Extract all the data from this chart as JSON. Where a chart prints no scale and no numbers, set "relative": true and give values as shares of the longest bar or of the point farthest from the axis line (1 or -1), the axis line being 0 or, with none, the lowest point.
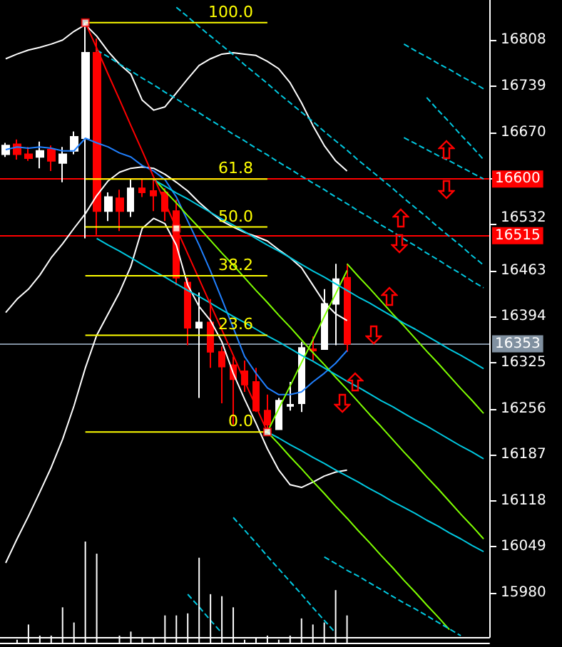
{
  "chart_data": [
    {
      "type": "candlestick",
      "categories": [
        null,
        null,
        null,
        null,
        null,
        null,
        null,
        null,
        null,
        null,
        null,
        null,
        null,
        null,
        null,
        null,
        null,
        null,
        null,
        null,
        null,
        null,
        null,
        null,
        null,
        null,
        null,
        null,
        null,
        null,
        null,
        null,
        null,
        null,
        null,
        null,
        null,
        null,
        null,
        null,
        null,
        null,
        null
      ],
      "ohlc": [
        [
          16637,
          16654,
          16633,
          16650
        ],
        [
          16652,
          16659,
          16629,
          16637
        ],
        [
          16637,
          16648,
          16627,
          16631
        ],
        [
          16633,
          16656,
          16616,
          16642
        ],
        [
          16644,
          16650,
          16612,
          16627
        ],
        [
          16624,
          16648,
          16595,
          16637
        ],
        [
          16642,
          16671,
          16637,
          16663
        ],
        [
          16661,
          16834,
          16511,
          16789
        ],
        [
          16789,
          16810,
          16516,
          16552
        ],
        [
          16552,
          16580,
          16537,
          16573
        ],
        [
          16571,
          16584,
          16522,
          16552
        ],
        [
          16552,
          16599,
          16543,
          16586
        ],
        [
          16586,
          16599,
          16573,
          16580
        ],
        [
          16582,
          16601,
          16552,
          16575
        ],
        [
          16580,
          16586,
          16537,
          16552
        ],
        [
          16552,
          16569,
          16441,
          16452
        ],
        [
          16445,
          16452,
          16351,
          16377
        ],
        [
          16377,
          16430,
          16272,
          16385
        ],
        [
          16385,
          16420,
          16317,
          16341
        ],
        [
          16341,
          16349,
          16264,
          16319
        ],
        [
          16321,
          16334,
          16232,
          16300
        ],
        [
          16312,
          16328,
          16281,
          16292
        ],
        [
          16296,
          16317,
          16251,
          16253
        ],
        [
          16253,
          16277,
          16221,
          16232
        ],
        [
          16225,
          16272,
          16225,
          16268
        ],
        [
          16260,
          16296,
          16253,
          16262
        ],
        [
          16264,
          16356,
          16251,
          16347
        ],
        [
          16345,
          16364,
          16328,
          16343
        ],
        [
          16345,
          16435,
          16345,
          16413
        ],
        [
          16413,
          16473,
          16351,
          16450
        ],
        [
          16452,
          16473,
          16341,
          16353
        ],
        null,
        null,
        null,
        null,
        null,
        null,
        null,
        null,
        null,
        null,
        null,
        null
      ],
      "ylim": [
        15914,
        16868
      ],
      "yticks": [
        15980,
        16049,
        16118,
        16187,
        16256,
        16325,
        16394,
        16463,
        16532,
        {
          "value": 16600,
          "label": null
        },
        16670,
        16739,
        16808
      ],
      "tick_labels": "y",
      "grid": false,
      "legend": false,
      "series": [
        {
          "type": "line",
          "color": "#ffffff",
          "values": [
            16780,
            16787,
            16793,
            16797,
            16802,
            16808,
            16821,
            16831,
            16814,
            16791,
            16772,
            16757,
            16718,
            16703,
            16708,
            16729,
            16750,
            16770,
            16780,
            16787,
            16789,
            16787,
            16785,
            16776,
            16765,
            16744,
            16714,
            16680,
            16650,
            16627,
            16612,
            null,
            null,
            null,
            null,
            null,
            null,
            null,
            null,
            null,
            null,
            null,
            null
          ]
        },
        {
          "type": "line",
          "color": "#ffffff",
          "values": [
            16400,
            16420,
            16435,
            16456,
            16482,
            16503,
            16526,
            16548,
            16575,
            16597,
            16610,
            16616,
            16618,
            16616,
            16607,
            16595,
            16582,
            16565,
            16550,
            16537,
            16528,
            16520,
            16514,
            16507,
            16494,
            16482,
            16467,
            16441,
            16415,
            16398,
            16388,
            null,
            null,
            null,
            null,
            null,
            null,
            null,
            null,
            null,
            null,
            null,
            null
          ]
        },
        {
          "type": "line",
          "color": "#ffffff",
          "values": [
            16025,
            16061,
            16095,
            16131,
            16168,
            16210,
            16260,
            16317,
            16366,
            16398,
            16430,
            16469,
            16526,
            16541,
            16533,
            16501,
            16441,
            16409,
            16388,
            16356,
            16309,
            16270,
            16234,
            16196,
            16164,
            16142,
            16138,
            16146,
            16155,
            16161,
            16164,
            null,
            null,
            null,
            null,
            null,
            null,
            null,
            null,
            null,
            null,
            null,
            null
          ]
        },
        {
          "type": "line",
          "color": "#2080ff",
          "values": [
            16644,
            16648,
            16646,
            16648,
            16646,
            16642,
            16642,
            16661,
            16654,
            16648,
            16639,
            16633,
            16620,
            16612,
            16599,
            16573,
            16537,
            16501,
            16462,
            16420,
            16377,
            16334,
            16309,
            16287,
            16277,
            16277,
            16281,
            16296,
            16309,
            16324,
            16343,
            null,
            null,
            null,
            null,
            null,
            null,
            null,
            null,
            null,
            null,
            null,
            null
          ]
        },
        {
          "type": "line",
          "color": "#7fff00",
          "values": [
            null,
            null,
            null,
            null,
            null,
            null,
            null,
            null,
            null,
            null,
            null,
            null,
            null,
            null,
            null,
            null,
            null,
            null,
            null,
            null,
            null,
            null,
            null,
            16221,
            16256,
            16290,
            16325,
            16359,
            16394,
            16428,
            16463,
            null,
            null,
            null,
            null,
            null,
            null,
            null,
            null,
            null,
            null,
            null,
            null
          ]
        },
        {
          "type": "line",
          "color": "#7fff00",
          "values": [
            null,
            null,
            null,
            null,
            null,
            null,
            null,
            null,
            null,
            null,
            null,
            null,
            null,
            null,
            null,
            null,
            null,
            null,
            null,
            null,
            null,
            null,
            null,
            null,
            null,
            null,
            null,
            null,
            null,
            null,
            16473,
            16454,
            16436,
            16417,
            16398,
            16380,
            16361,
            16342,
            16324,
            16305,
            16286,
            16268,
            16249
          ]
        },
        {
          "type": "line",
          "color": "#7fff00",
          "values": [
            null,
            null,
            null,
            null,
            null,
            null,
            null,
            null,
            null,
            null,
            null,
            null,
            null,
            16601,
            16582,
            16564,
            16545,
            16527,
            16508,
            16489,
            16471,
            16452,
            16433,
            16415,
            16396,
            16378,
            16359,
            16340,
            16322,
            16303,
            16285,
            16266,
            16247,
            16229,
            16210,
            16191,
            16173,
            16154,
            16136,
            16117,
            16098,
            16080,
            16061
          ]
        },
        {
          "type": "line",
          "color": "#7fff00",
          "values": [
            null,
            null,
            null,
            null,
            null,
            null,
            null,
            null,
            null,
            null,
            null,
            null,
            null,
            null,
            null,
            null,
            null,
            null,
            null,
            null,
            null,
            null,
            null,
            16221,
            16203,
            16184,
            16166,
            16147,
            16129,
            16110,
            16092,
            16073,
            16055,
            16036,
            16018,
            15999,
            15981,
            15962,
            15944,
            15925,
            null,
            null,
            null
          ]
        },
        {
          "type": "line",
          "color": "#00c8e0",
          "values": [
            null,
            null,
            null,
            null,
            null,
            null,
            null,
            null,
            null,
            null,
            null,
            null,
            null,
            16599,
            16589,
            16579,
            16570,
            16560,
            16550,
            16540,
            16531,
            16521,
            16511,
            16501,
            16492,
            16482,
            16472,
            16462,
            16453,
            16443,
            16433,
            16423,
            16414,
            16404,
            16394,
            16384,
            16375,
            16365,
            16355,
            16345,
            16336,
            16326,
            16316
          ]
        },
        {
          "type": "line",
          "color": "#00c8e0",
          "values": [
            null,
            null,
            null,
            null,
            null,
            null,
            null,
            null,
            16511,
            16501,
            16492,
            16482,
            16472,
            16462,
            16453,
            16443,
            16433,
            16424,
            16414,
            16404,
            16394,
            16385,
            16375,
            16365,
            16356,
            16346,
            16336,
            16327,
            16317,
            16307,
            16297,
            16288,
            16278,
            16268,
            16259,
            16249,
            16239,
            16230,
            16220,
            16210,
            16200,
            16191,
            16181
          ]
        },
        {
          "type": "line",
          "color": "#00c8e0",
          "values": [
            null,
            null,
            null,
            null,
            null,
            null,
            null,
            null,
            null,
            null,
            null,
            null,
            null,
            null,
            null,
            null,
            null,
            null,
            null,
            null,
            null,
            null,
            null,
            16221,
            16212,
            16202,
            16193,
            16183,
            16174,
            16164,
            16155,
            16146,
            16136,
            16127,
            16117,
            16108,
            16099,
            16089,
            16080,
            16070,
            16061,
            16051,
            16042
          ]
        },
        {
          "type": "line",
          "color": "#00c8e0",
          "line_style": "dashed",
          "values": [
            null,
            null,
            null,
            null,
            null,
            null,
            null,
            null,
            null,
            null,
            null,
            null,
            null,
            null,
            null,
            16857,
            16843,
            16828,
            16814,
            16800,
            16786,
            16771,
            16757,
            16743,
            16728,
            16714,
            16700,
            16686,
            16671,
            16657,
            16643,
            16628,
            16614,
            16600,
            16586,
            16571,
            16557,
            16543,
            16528,
            16514,
            16500,
            16485,
            16471
          ]
        },
        {
          "type": "line",
          "color": "#00c8e0",
          "line_style": "dashed",
          "values": [
            null,
            null,
            null,
            null,
            null,
            null,
            null,
            null,
            16793,
            16783,
            16772,
            16762,
            16751,
            16741,
            16730,
            16720,
            16709,
            16699,
            16688,
            16678,
            16667,
            16657,
            16646,
            16636,
            16625,
            16615,
            16604,
            16594,
            16584,
            16573,
            16563,
            16552,
            16542,
            16531,
            16521,
            16510,
            16500,
            16489,
            16479,
            16468,
            16458,
            16447,
            16437
          ]
        },
        {
          "type": "line",
          "color": "#00c8e0",
          "line_style": "dashed",
          "values": [
            null,
            null,
            null,
            null,
            null,
            null,
            null,
            null,
            null,
            null,
            null,
            null,
            null,
            null,
            null,
            null,
            null,
            null,
            null,
            null,
            null,
            null,
            null,
            null,
            null,
            null,
            null,
            null,
            null,
            null,
            null,
            null,
            null,
            null,
            null,
            16802,
            16792,
            16783,
            16773,
            16764,
            16754,
            16745,
            16735
          ]
        },
        {
          "type": "line",
          "color": "#00c8e0",
          "line_style": "dashed",
          "values": [
            null,
            null,
            null,
            null,
            null,
            null,
            null,
            null,
            null,
            null,
            null,
            null,
            null,
            null,
            null,
            null,
            null,
            null,
            null,
            null,
            null,
            null,
            null,
            null,
            null,
            null,
            null,
            null,
            null,
            null,
            null,
            null,
            null,
            null,
            null,
            null,
            null,
            16722,
            16703,
            16685,
            16666,
            16648,
            16629
          ]
        },
        {
          "type": "line",
          "color": "#00c8e0",
          "line_style": "dashed",
          "values": [
            null,
            null,
            null,
            null,
            null,
            null,
            null,
            null,
            null,
            null,
            null,
            null,
            null,
            null,
            null,
            null,
            null,
            null,
            null,
            null,
            null,
            null,
            null,
            null,
            null,
            null,
            null,
            null,
            null,
            null,
            null,
            null,
            null,
            null,
            null,
            16662,
            16653,
            16644,
            16635,
            16627,
            16618,
            16609,
            16600
          ]
        },
        {
          "type": "line",
          "color": "#00c8e0",
          "line_style": "dashed",
          "values": [
            null,
            null,
            null,
            null,
            null,
            null,
            null,
            null,
            null,
            null,
            null,
            null,
            null,
            null,
            null,
            null,
            null,
            null,
            null,
            null,
            16093,
            16074,
            16055,
            16035,
            16016,
            15997,
            15978,
            15958,
            15939,
            15920,
            null,
            null,
            null,
            null,
            null,
            null,
            null,
            null,
            null,
            null,
            null,
            null,
            null
          ]
        },
        {
          "type": "line",
          "color": "#00c8e0",
          "line_style": "dashed",
          "values": [
            null,
            null,
            null,
            null,
            null,
            null,
            null,
            null,
            null,
            null,
            null,
            null,
            null,
            null,
            null,
            null,
            15978,
            15959,
            15939,
            15920,
            null,
            null,
            null,
            null,
            null,
            null,
            null,
            null,
            null,
            null,
            null,
            null,
            null,
            null,
            null,
            null,
            null,
            null,
            null,
            null,
            null,
            null,
            null
          ]
        },
        {
          "type": "line",
          "color": "#00c8e0",
          "line_style": "dashed",
          "values": [
            null,
            null,
            null,
            null,
            null,
            null,
            null,
            null,
            null,
            null,
            null,
            null,
            null,
            null,
            null,
            null,
            null,
            null,
            null,
            null,
            null,
            null,
            null,
            null,
            null,
            null,
            null,
            null,
            16034,
            16024,
            16014,
            16005,
            15995,
            15985,
            15975,
            15965,
            15956,
            15946,
            15936,
            15926,
            15916,
            null,
            null
          ]
        },
        {
          "type": "line",
          "color": "#ff0000",
          "values": [
            null,
            null,
            null,
            null,
            null,
            null,
            null,
            16834,
            16796,
            16757,
            16719,
            16680,
            16642,
            16603,
            16565,
            16526,
            16488,
            16450,
            16412,
            16374,
            16336,
            16297,
            16259,
            16221,
            null,
            null,
            null,
            null,
            null,
            null,
            null,
            null,
            null,
            null,
            null,
            null,
            null,
            null,
            null,
            null,
            null,
            null,
            null
          ]
        },
        {
          "type": "scatter",
          "color": "#ff0000",
          "marker": "square",
          "values": [
            null,
            null,
            null,
            null,
            null,
            null,
            null,
            16834,
            null,
            null,
            null,
            null,
            null,
            null,
            null,
            16526,
            null,
            null,
            null,
            null,
            null,
            null,
            null,
            16221,
            null,
            null,
            null,
            null,
            null,
            null,
            null,
            null,
            null,
            null,
            null,
            null,
            null,
            null,
            null,
            null,
            null,
            null,
            null
          ]
        },
        {
          "type": "line",
          "name": "100.0",
          "color": "#ffff00",
          "values": [
            null,
            null,
            null,
            null,
            null,
            null,
            null,
            16834,
            16834,
            16834,
            16834,
            16834,
            16834,
            16834,
            16834,
            16834,
            16834,
            16834,
            16834,
            16834,
            16834,
            16834,
            16834,
            16834,
            null,
            null,
            null,
            null,
            null,
            null,
            null,
            null,
            null,
            null,
            null,
            null,
            null,
            null,
            null,
            null,
            null,
            null,
            null
          ]
        },
        {
          "type": "line",
          "name": "61.8",
          "color": "#ffff00",
          "values": [
            null,
            null,
            null,
            null,
            null,
            null,
            null,
            16600,
            16600,
            16600,
            16600,
            16600,
            16600,
            16600,
            16600,
            16600,
            16600,
            16600,
            16600,
            16600,
            16600,
            16600,
            16600,
            16600,
            null,
            null,
            null,
            null,
            null,
            null,
            null,
            null,
            null,
            null,
            null,
            null,
            null,
            null,
            null,
            null,
            null,
            null,
            null
          ]
        },
        {
          "type": "line",
          "name": "50.0",
          "color": "#ffff00",
          "values": [
            null,
            null,
            null,
            null,
            null,
            null,
            null,
            16528,
            16528,
            16528,
            16528,
            16528,
            16528,
            16528,
            16528,
            16528,
            16528,
            16528,
            16528,
            16528,
            16528,
            16528,
            16528,
            16528,
            null,
            null,
            null,
            null,
            null,
            null,
            null,
            null,
            null,
            null,
            null,
            null,
            null,
            null,
            null,
            null,
            null,
            null,
            null
          ]
        },
        {
          "type": "line",
          "name": "38.2",
          "color": "#ffff00",
          "values": [
            null,
            null,
            null,
            null,
            null,
            null,
            null,
            16455,
            16455,
            16455,
            16455,
            16455,
            16455,
            16455,
            16455,
            16455,
            16455,
            16455,
            16455,
            16455,
            16455,
            16455,
            16455,
            16455,
            null,
            null,
            null,
            null,
            null,
            null,
            null,
            null,
            null,
            null,
            null,
            null,
            null,
            null,
            null,
            null,
            null,
            null,
            null
          ]
        },
        {
          "type": "line",
          "name": "23.6",
          "color": "#ffff00",
          "values": [
            null,
            null,
            null,
            null,
            null,
            null,
            null,
            16366,
            16366,
            16366,
            16366,
            16366,
            16366,
            16366,
            16366,
            16366,
            16366,
            16366,
            16366,
            16366,
            16366,
            16366,
            16366,
            16366,
            null,
            null,
            null,
            null,
            null,
            null,
            null,
            null,
            null,
            null,
            null,
            null,
            null,
            null,
            null,
            null,
            null,
            null,
            null
          ]
        },
        {
          "type": "line",
          "name": "0.0",
          "color": "#ffff00",
          "values": [
            null,
            null,
            null,
            null,
            null,
            null,
            null,
            16221,
            16221,
            16221,
            16221,
            16221,
            16221,
            16221,
            16221,
            16221,
            16221,
            16221,
            16221,
            16221,
            16221,
            16221,
            16221,
            16221,
            null,
            null,
            null,
            null,
            null,
            null,
            null,
            null,
            null,
            null,
            null,
            null,
            null,
            null,
            null,
            null,
            null,
            null,
            null
          ]
        }
      ],
      "ref_lines": [
        {
          "axis": "y",
          "value": 16600,
          "label": "16600",
          "color": "#ff0000"
        },
        {
          "axis": "y",
          "value": 16515,
          "label": "16515",
          "color": "#ff0000"
        },
        {
          "axis": "y",
          "value": 16353,
          "label": "16353",
          "color": "#8090a0"
        }
      ]
    },
    {
      "type": "bar",
      "relative": true,
      "color": "#ffffff",
      "categories": [
        null,
        null,
        null,
        null,
        null,
        null,
        null,
        null,
        null,
        null,
        null,
        null,
        null,
        null,
        null,
        null,
        null,
        null,
        null,
        null,
        null,
        null,
        null,
        null,
        null,
        null,
        null,
        null,
        null,
        null,
        null,
        null,
        null,
        null,
        null,
        null,
        null,
        null,
        null,
        null,
        null,
        null,
        null
      ],
      "values": [
        null,
        0.03,
        0.18,
        0.07,
        0.07,
        0.35,
        0.2,
        1,
        0.88,
        null,
        0.07,
        0.11,
        0.05,
        0.05,
        0.27,
        0.27,
        0.29,
        0.84,
        0.48,
        0.46,
        0.35,
        0.03,
        0.05,
        0.07,
        0.03,
        0.07,
        0.24,
        0.18,
        0.2,
        0.52,
        0.27,
        null,
        null,
        null,
        null,
        null,
        null,
        null,
        null,
        null,
        null,
        null,
        null
      ],
      "tick_labels": false
    }
  ]
}
